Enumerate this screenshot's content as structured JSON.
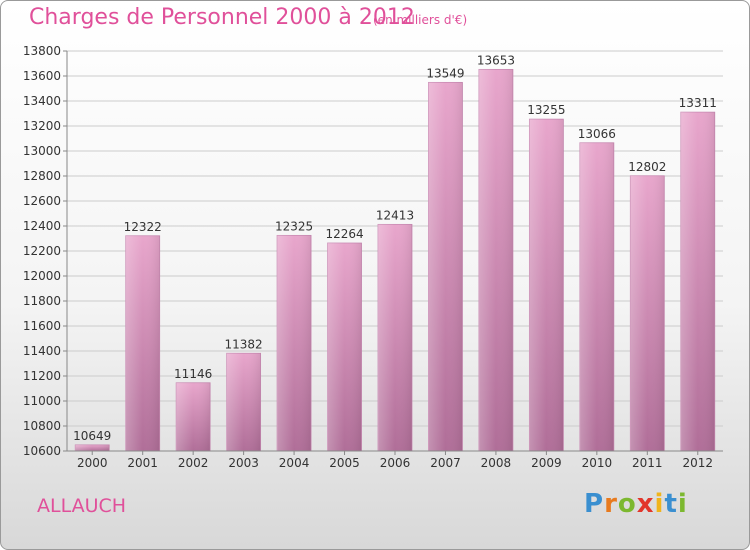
{
  "header": {
    "title": "Charges de Personnel 2000 à 2012",
    "subtitle": "(en milliers d'€)"
  },
  "footer": {
    "commune": "ALLAUCH",
    "logo_text": "Proxiti"
  },
  "colors": {
    "accent": "#e0509a",
    "bar_top": "#e8a6cc",
    "bar_bottom": "#b06e98",
    "grid": "#cccccc"
  },
  "chart_data": {
    "type": "bar",
    "title": "Charges de Personnel 2000 à 2012",
    "subtitle": "(en milliers d'€)",
    "categories": [
      "2000",
      "2001",
      "2002",
      "2003",
      "2004",
      "2005",
      "2006",
      "2007",
      "2008",
      "2009",
      "2010",
      "2011",
      "2012"
    ],
    "values": [
      10649,
      12322,
      11146,
      11382,
      12325,
      12264,
      12413,
      13549,
      13653,
      13255,
      13066,
      12802,
      13311
    ],
    "ylim": [
      10600,
      13800
    ],
    "yticks": [
      10600,
      10800,
      11000,
      11200,
      11400,
      11600,
      11800,
      12000,
      12200,
      12400,
      12600,
      12800,
      13000,
      13200,
      13400,
      13600,
      13800
    ],
    "grid": true,
    "data_labels": true,
    "xlabel": "",
    "ylabel": ""
  }
}
